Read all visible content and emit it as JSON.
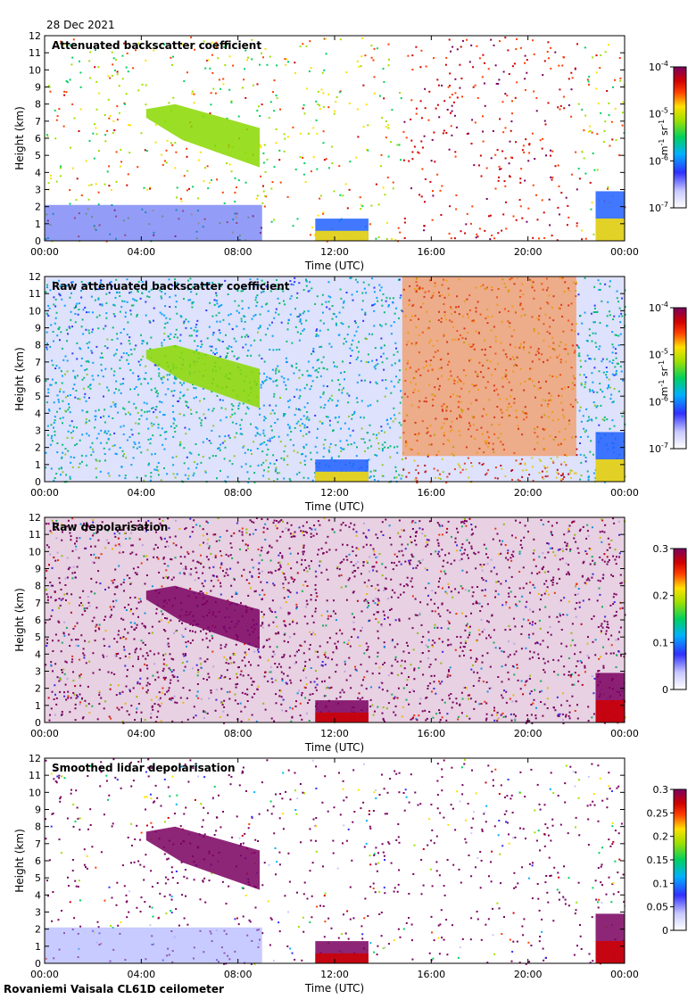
{
  "date_label": "28 Dec 2021",
  "footer_label": "Rovaniemi Vaisala CL61D ceilometer",
  "chart_data": [
    {
      "type": "heatmap",
      "title": "Attenuated backscatter coefficient",
      "xlabel": "Time (UTC)",
      "ylabel": "Height (km)",
      "x_ticks": [
        "00:00",
        "04:00",
        "08:00",
        "12:00",
        "16:00",
        "20:00",
        "00:00"
      ],
      "y_ticks": [
        "0",
        "1",
        "2",
        "3",
        "4",
        "5",
        "6",
        "7",
        "8",
        "9",
        "10",
        "11",
        "12"
      ],
      "ylim": [
        0,
        12
      ],
      "xlim_hours": [
        0,
        24
      ],
      "colorbar": {
        "scale": "log",
        "range": [
          1e-07,
          0.0001
        ],
        "ticks": [
          {
            "base": "10",
            "exp": "-7"
          },
          {
            "base": "10",
            "exp": "-6"
          },
          {
            "base": "10",
            "exp": "-5"
          },
          {
            "base": "10",
            "exp": "-4"
          }
        ],
        "label": "m-1 sr-1"
      },
      "features": [
        {
          "name": "boundary-layer",
          "t_start": 0,
          "t_end": 9,
          "h_top": 2.1
        },
        {
          "name": "cirrus",
          "t_start": 4.2,
          "t_end": 8.9,
          "h_bottom": 4.3,
          "h_top": 8.0
        },
        {
          "name": "low-cloud",
          "t_start": 11.2,
          "t_end": 13.4,
          "h_top": 1.3
        },
        {
          "name": "low-cloud",
          "t_start": 22.8,
          "t_end": 24,
          "h_top": 2.9
        }
      ]
    },
    {
      "type": "heatmap",
      "title": "Raw attenuated backscatter coefficient",
      "xlabel": "Time (UTC)",
      "ylabel": "Height (km)",
      "x_ticks": [
        "00:00",
        "04:00",
        "08:00",
        "12:00",
        "16:00",
        "20:00",
        "00:00"
      ],
      "y_ticks": [
        "0",
        "1",
        "2",
        "3",
        "4",
        "5",
        "6",
        "7",
        "8",
        "9",
        "10",
        "11",
        "12"
      ],
      "ylim": [
        0,
        12
      ],
      "xlim_hours": [
        0,
        24
      ],
      "colorbar": {
        "scale": "log",
        "range": [
          1e-07,
          0.0001
        ],
        "ticks": [
          {
            "base": "10",
            "exp": "-7"
          },
          {
            "base": "10",
            "exp": "-6"
          },
          {
            "base": "10",
            "exp": "-5"
          },
          {
            "base": "10",
            "exp": "-4"
          }
        ],
        "label": "m-1 sr-1"
      },
      "features": [
        {
          "name": "noisy-background",
          "t_start": 0,
          "t_end": 24,
          "h_top": 12
        },
        {
          "name": "high-noise",
          "t_start": 14.8,
          "t_end": 22,
          "h_top": 12
        },
        {
          "name": "cirrus",
          "t_start": 4.2,
          "t_end": 8.9,
          "h_bottom": 4.3,
          "h_top": 8.0
        },
        {
          "name": "low-cloud",
          "t_start": 11.2,
          "t_end": 13.4,
          "h_top": 1.3
        },
        {
          "name": "low-cloud",
          "t_start": 22.8,
          "t_end": 24,
          "h_top": 2.9
        }
      ]
    },
    {
      "type": "heatmap",
      "title": "Raw depolarisation",
      "xlabel": "Time (UTC)",
      "ylabel": "Height (km)",
      "x_ticks": [
        "00:00",
        "04:00",
        "08:00",
        "12:00",
        "16:00",
        "20:00",
        "00:00"
      ],
      "y_ticks": [
        "0",
        "1",
        "2",
        "3",
        "4",
        "5",
        "6",
        "7",
        "8",
        "9",
        "10",
        "11",
        "12"
      ],
      "ylim": [
        0,
        12
      ],
      "xlim_hours": [
        0,
        24
      ],
      "colorbar": {
        "scale": "linear",
        "range": [
          0,
          0.3
        ],
        "ticks": [
          "0",
          "0.1",
          "0.2",
          "0.3"
        ],
        "label": ""
      },
      "features": [
        {
          "name": "noise",
          "t_start": 0,
          "t_end": 24,
          "h_top": 12
        },
        {
          "name": "cirrus",
          "t_start": 4.2,
          "t_end": 8.9,
          "h_bottom": 4.3,
          "h_top": 8.0
        },
        {
          "name": "low-cloud",
          "t_start": 11.2,
          "t_end": 13.4,
          "h_top": 1.3
        },
        {
          "name": "low-cloud",
          "t_start": 22.8,
          "t_end": 24,
          "h_top": 2.9
        }
      ]
    },
    {
      "type": "heatmap",
      "title": "Smoothed lidar depolarisation",
      "xlabel": "Time (UTC)",
      "ylabel": "Height (km)",
      "x_ticks": [
        "00:00",
        "04:00",
        "08:00",
        "12:00",
        "16:00",
        "20:00",
        "00:00"
      ],
      "y_ticks": [
        "0",
        "1",
        "2",
        "3",
        "4",
        "5",
        "6",
        "7",
        "8",
        "9",
        "10",
        "11",
        "12"
      ],
      "ylim": [
        0,
        12
      ],
      "xlim_hours": [
        0,
        24
      ],
      "colorbar": {
        "scale": "linear",
        "range": [
          0,
          0.3
        ],
        "ticks": [
          "0",
          "0.05",
          "0.1",
          "0.15",
          "0.2",
          "0.25",
          "0.3"
        ],
        "label": ""
      },
      "features": [
        {
          "name": "boundary-layer",
          "t_start": 0,
          "t_end": 9,
          "h_top": 2.1
        },
        {
          "name": "cirrus",
          "t_start": 4.2,
          "t_end": 8.9,
          "h_bottom": 4.3,
          "h_top": 8.0
        },
        {
          "name": "low-cloud",
          "t_start": 11.2,
          "t_end": 13.4,
          "h_top": 1.3
        },
        {
          "name": "low-cloud",
          "t_start": 22.8,
          "t_end": 24,
          "h_top": 2.9
        }
      ]
    }
  ]
}
